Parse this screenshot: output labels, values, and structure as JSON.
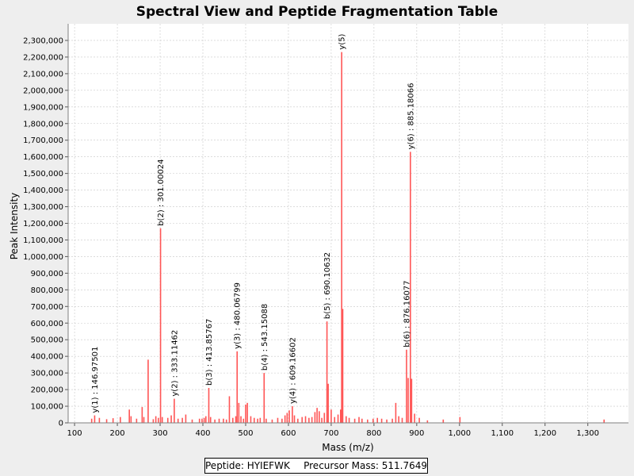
{
  "chart_data": {
    "type": "bar",
    "title": "Spectral View and Peptide Fragmentation Table",
    "xlabel": "Mass (m/z)",
    "ylabel": "Peak Intensity",
    "xlim": [
      85,
      1395
    ],
    "ylim": [
      0,
      2400000
    ],
    "x_ticks": [
      100,
      200,
      300,
      400,
      500,
      600,
      700,
      800,
      900,
      1000,
      1100,
      1200,
      1300
    ],
    "x_tick_labels": [
      "100",
      "200",
      "300",
      "400",
      "500",
      "600",
      "700",
      "800",
      "900",
      "1,000",
      "1,100",
      "1,200",
      "1,300"
    ],
    "y_ticks": [
      0,
      100000,
      200000,
      300000,
      400000,
      500000,
      600000,
      700000,
      800000,
      900000,
      1000000,
      1100000,
      1200000,
      1300000,
      1400000,
      1500000,
      1600000,
      1700000,
      1800000,
      1900000,
      2000000,
      2100000,
      2200000,
      2300000
    ],
    "y_tick_labels": [
      "0",
      "100,000",
      "200,000",
      "300,000",
      "400,000",
      "500,000",
      "600,000",
      "700,000",
      "800,000",
      "900,000",
      "1,000,000",
      "1,100,000",
      "1,200,000",
      "1,300,000",
      "1,400,000",
      "1,500,000",
      "1,600,000",
      "1,700,000",
      "1,800,000",
      "1,900,000",
      "2,000,000",
      "2,100,000",
      "2,200,000",
      "2,300,000"
    ],
    "grid": true,
    "colors": {
      "peak": "#ff5555",
      "grid": "#c8c8c8",
      "plot_bg": "#ffffff",
      "page_bg": "#eeeeee"
    },
    "peaks": [
      [
        140,
        25000
      ],
      [
        146.97,
        45000
      ],
      [
        158,
        30000
      ],
      [
        175,
        22000
      ],
      [
        190,
        28000
      ],
      [
        207,
        35000
      ],
      [
        228,
        80000
      ],
      [
        232,
        40000
      ],
      [
        245,
        25000
      ],
      [
        258,
        95000
      ],
      [
        262,
        35000
      ],
      [
        272,
        380000
      ],
      [
        284,
        22000
      ],
      [
        290,
        40000
      ],
      [
        296,
        30000
      ],
      [
        301.0,
        1170000
      ],
      [
        305,
        35000
      ],
      [
        318,
        30000
      ],
      [
        326,
        45000
      ],
      [
        333.11,
        145000
      ],
      [
        342,
        25000
      ],
      [
        352,
        30000
      ],
      [
        360,
        50000
      ],
      [
        375,
        20000
      ],
      [
        392,
        25000
      ],
      [
        398,
        25000
      ],
      [
        403,
        30000
      ],
      [
        407,
        40000
      ],
      [
        413.86,
        210000
      ],
      [
        418,
        35000
      ],
      [
        428,
        20000
      ],
      [
        438,
        25000
      ],
      [
        448,
        25000
      ],
      [
        455,
        20000
      ],
      [
        462,
        160000
      ],
      [
        470,
        30000
      ],
      [
        477,
        40000
      ],
      [
        480.07,
        430000
      ],
      [
        484,
        120000
      ],
      [
        489,
        40000
      ],
      [
        495,
        25000
      ],
      [
        500,
        110000
      ],
      [
        504,
        120000
      ],
      [
        512,
        40000
      ],
      [
        520,
        30000
      ],
      [
        528,
        25000
      ],
      [
        534,
        30000
      ],
      [
        543.15,
        300000
      ],
      [
        548,
        25000
      ],
      [
        562,
        20000
      ],
      [
        575,
        30000
      ],
      [
        585,
        25000
      ],
      [
        592,
        45000
      ],
      [
        597,
        60000
      ],
      [
        602,
        75000
      ],
      [
        609.17,
        100000
      ],
      [
        614,
        45000
      ],
      [
        622,
        25000
      ],
      [
        632,
        35000
      ],
      [
        640,
        40000
      ],
      [
        648,
        30000
      ],
      [
        655,
        35000
      ],
      [
        662,
        65000
      ],
      [
        667,
        90000
      ],
      [
        672,
        70000
      ],
      [
        678,
        30000
      ],
      [
        684,
        60000
      ],
      [
        690.11,
        610000
      ],
      [
        693,
        235000
      ],
      [
        700,
        80000
      ],
      [
        708,
        35000
      ],
      [
        716,
        50000
      ],
      [
        722,
        80000
      ],
      [
        724.5,
        2230000
      ],
      [
        727,
        685000
      ],
      [
        735,
        40000
      ],
      [
        742,
        30000
      ],
      [
        755,
        25000
      ],
      [
        765,
        35000
      ],
      [
        772,
        25000
      ],
      [
        785,
        20000
      ],
      [
        798,
        25000
      ],
      [
        808,
        30000
      ],
      [
        818,
        25000
      ],
      [
        830,
        20000
      ],
      [
        843,
        25000
      ],
      [
        851,
        120000
      ],
      [
        858,
        40000
      ],
      [
        866,
        30000
      ],
      [
        876.16,
        440000
      ],
      [
        880,
        270000
      ],
      [
        885.18,
        1630000
      ],
      [
        888,
        265000
      ],
      [
        895,
        55000
      ],
      [
        906,
        30000
      ],
      [
        925,
        15000
      ],
      [
        962,
        20000
      ],
      [
        1001,
        35000
      ],
      [
        1338,
        20000
      ]
    ],
    "annotations": [
      {
        "x": 146.97,
        "y": 45000,
        "label": "y(1) : 146.97501"
      },
      {
        "x": 301.0,
        "y": 1170000,
        "label": "b(2) : 301.00024"
      },
      {
        "x": 333.11,
        "y": 145000,
        "label": "y(2) : 333.11462"
      },
      {
        "x": 413.86,
        "y": 210000,
        "label": "b(3) : 413.85767"
      },
      {
        "x": 480.07,
        "y": 430000,
        "label": "y(3) : 480.06799"
      },
      {
        "x": 543.15,
        "y": 300000,
        "label": "b(4) : 543.15088"
      },
      {
        "x": 609.17,
        "y": 100000,
        "label": "y(4) : 609.16602"
      },
      {
        "x": 690.11,
        "y": 610000,
        "label": "b(5) : 690.10632"
      },
      {
        "x": 724.5,
        "y": 2230000,
        "label": "y(5)"
      },
      {
        "x": 876.16,
        "y": 440000,
        "label": "b(6) : 876.16077"
      },
      {
        "x": 885.18,
        "y": 1630000,
        "label": "y(6) : 885.18066"
      }
    ]
  },
  "legend": {
    "peptide": "Peptide: HYIEFWK",
    "precursor": "Precursor Mass: 511.7649"
  }
}
